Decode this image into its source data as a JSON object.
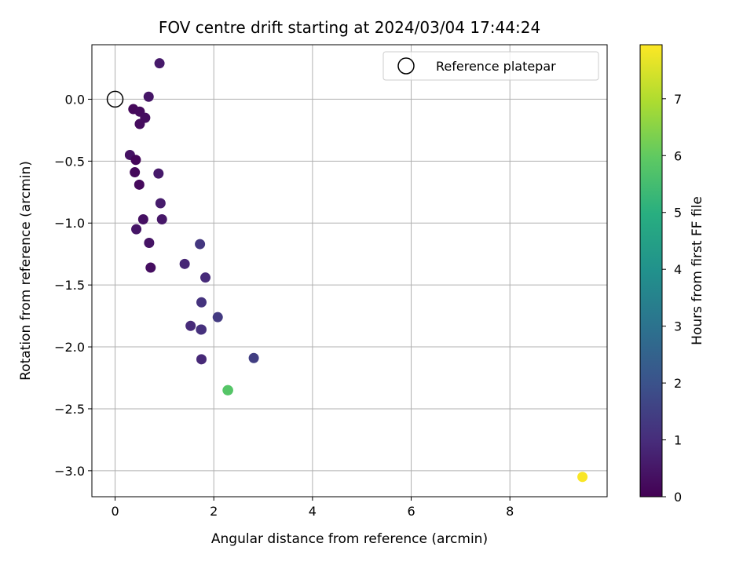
{
  "chart_data": {
    "type": "scatter",
    "title": "FOV centre drift starting at 2024/03/04 17:44:24",
    "xlabel": "Angular distance from reference (arcmin)",
    "ylabel": "Rotation from reference (arcmin)",
    "xlim": [
      -0.47,
      9.97
    ],
    "ylim": [
      -3.21,
      0.44
    ],
    "xticks": [
      0,
      2,
      4,
      6,
      8
    ],
    "xtick_labels": [
      "0",
      "2",
      "4",
      "6",
      "8"
    ],
    "yticks": [
      0.0,
      -0.5,
      -1.0,
      -1.5,
      -2.0,
      -2.5,
      -3.0
    ],
    "ytick_labels": [
      "0.0",
      "−0.5",
      "−1.0",
      "−1.5",
      "−2.0",
      "−2.5",
      "−3.0"
    ],
    "grid": true,
    "legend": {
      "position": "top-right",
      "entries": [
        "Reference platepar"
      ]
    },
    "reference_point": {
      "x": 0,
      "y": 0
    },
    "colorbar": {
      "label": "Hours from first FF file",
      "colormap": "viridis",
      "range": [
        0,
        7.95
      ],
      "ticks": [
        0,
        1,
        2,
        3,
        4,
        5,
        6,
        7
      ],
      "tick_labels": [
        "0",
        "1",
        "2",
        "3",
        "4",
        "5",
        "6",
        "7"
      ]
    },
    "points": [
      {
        "x": 0.9,
        "y": 0.29,
        "c": 0.55
      },
      {
        "x": 0.68,
        "y": 0.02,
        "c": 0.45
      },
      {
        "x": 0.37,
        "y": -0.08,
        "c": 0.18
      },
      {
        "x": 0.5,
        "y": -0.1,
        "c": 0.22
      },
      {
        "x": 0.61,
        "y": -0.15,
        "c": 0.28
      },
      {
        "x": 0.5,
        "y": -0.2,
        "c": 0.25
      },
      {
        "x": 0.3,
        "y": -0.45,
        "c": 0.38
      },
      {
        "x": 0.42,
        "y": -0.49,
        "c": 0.12
      },
      {
        "x": 0.4,
        "y": -0.59,
        "c": 0.15
      },
      {
        "x": 0.88,
        "y": -0.6,
        "c": 0.55
      },
      {
        "x": 0.49,
        "y": -0.69,
        "c": 0.2
      },
      {
        "x": 0.92,
        "y": -0.84,
        "c": 0.6
      },
      {
        "x": 0.57,
        "y": -0.97,
        "c": 0.35
      },
      {
        "x": 0.95,
        "y": -0.97,
        "c": 0.5
      },
      {
        "x": 0.43,
        "y": -1.05,
        "c": 0.45
      },
      {
        "x": 0.69,
        "y": -1.16,
        "c": 0.4
      },
      {
        "x": 1.72,
        "y": -1.17,
        "c": 1.25
      },
      {
        "x": 1.41,
        "y": -1.33,
        "c": 0.85
      },
      {
        "x": 0.72,
        "y": -1.36,
        "c": 0.3
      },
      {
        "x": 1.83,
        "y": -1.44,
        "c": 0.95
      },
      {
        "x": 1.75,
        "y": -1.64,
        "c": 1.15
      },
      {
        "x": 2.08,
        "y": -1.76,
        "c": 1.35
      },
      {
        "x": 1.53,
        "y": -1.83,
        "c": 0.95
      },
      {
        "x": 1.74,
        "y": -1.86,
        "c": 1.05
      },
      {
        "x": 1.75,
        "y": -1.86,
        "c": 1.1
      },
      {
        "x": 2.81,
        "y": -2.09,
        "c": 1.45
      },
      {
        "x": 1.75,
        "y": -2.1,
        "c": 0.9
      },
      {
        "x": 2.29,
        "y": -2.35,
        "c": 5.75
      },
      {
        "x": 2.28,
        "y": -2.35,
        "c": 5.8
      },
      {
        "x": 9.47,
        "y": -3.05,
        "c": 7.9
      }
    ]
  }
}
